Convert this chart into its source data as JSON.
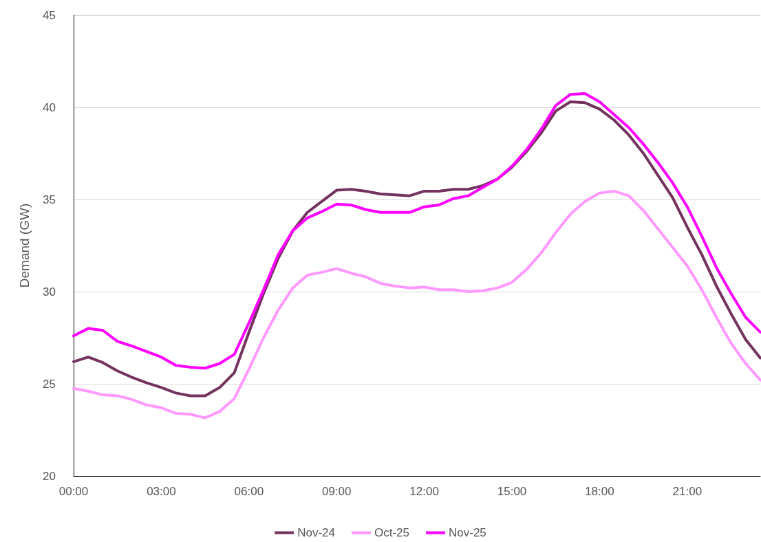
{
  "chart_data": {
    "type": "line",
    "ylabel": "Demand (GW)",
    "xlim": [
      0,
      23.5
    ],
    "ylim": [
      20,
      45
    ],
    "yticks": [
      20,
      25,
      30,
      35,
      40,
      45
    ],
    "xticks": [
      {
        "value": 0,
        "label": "00:00"
      },
      {
        "value": 3,
        "label": "03:00"
      },
      {
        "value": 6,
        "label": "06:00"
      },
      {
        "value": 9,
        "label": "09:00"
      },
      {
        "value": 12,
        "label": "12:00"
      },
      {
        "value": 15,
        "label": "15:00"
      },
      {
        "value": 18,
        "label": "18:00"
      },
      {
        "value": 21,
        "label": "21:00"
      }
    ],
    "x": [
      0,
      0.5,
      1,
      1.5,
      2,
      2.5,
      3,
      3.5,
      4,
      4.5,
      5,
      5.5,
      6,
      6.5,
      7,
      7.5,
      8,
      8.5,
      9,
      9.5,
      10,
      10.5,
      11,
      11.5,
      12,
      12.5,
      13,
      13.5,
      14,
      14.5,
      15,
      15.5,
      16,
      16.5,
      17,
      17.5,
      18,
      18.5,
      19,
      19.5,
      20,
      20.5,
      21,
      21.5,
      22,
      22.5,
      23,
      23.5
    ],
    "grid": "y",
    "legend": "bottom",
    "marker": "none",
    "line_style": "solid",
    "series": [
      {
        "name": "Nov-24",
        "color": "#74325f",
        "values": [
          26.2,
          26.45,
          26.15,
          25.7,
          25.35,
          25.05,
          24.8,
          24.5,
          24.35,
          24.35,
          24.8,
          25.6,
          27.8,
          29.9,
          31.8,
          33.3,
          34.3,
          34.9,
          35.5,
          35.55,
          35.45,
          35.3,
          35.25,
          35.2,
          35.45,
          35.45,
          35.55,
          35.55,
          35.75,
          36.1,
          36.75,
          37.6,
          38.6,
          39.8,
          40.3,
          40.25,
          39.9,
          39.3,
          38.5,
          37.5,
          36.3,
          35.1,
          33.5,
          32.0,
          30.3,
          28.8,
          27.4,
          26.4
        ]
      },
      {
        "name": "Oct-25",
        "color": "#ff99ff",
        "values": [
          24.75,
          24.6,
          24.4,
          24.35,
          24.15,
          23.85,
          23.7,
          23.4,
          23.35,
          23.15,
          23.5,
          24.2,
          25.8,
          27.5,
          29.0,
          30.2,
          30.9,
          31.05,
          31.25,
          31.0,
          30.8,
          30.45,
          30.3,
          30.2,
          30.25,
          30.1,
          30.1,
          30.0,
          30.05,
          30.2,
          30.5,
          31.2,
          32.1,
          33.2,
          34.2,
          34.9,
          35.35,
          35.45,
          35.2,
          34.4,
          33.4,
          32.4,
          31.4,
          30.1,
          28.6,
          27.2,
          26.1,
          25.2
        ]
      },
      {
        "name": "Nov-25",
        "color": "#ff00ff",
        "values": [
          27.6,
          28.0,
          27.9,
          27.3,
          27.05,
          26.75,
          26.45,
          26.0,
          25.9,
          25.85,
          26.1,
          26.6,
          28.3,
          30.1,
          32.0,
          33.3,
          34.0,
          34.35,
          34.75,
          34.7,
          34.45,
          34.3,
          34.3,
          34.3,
          34.6,
          34.7,
          35.05,
          35.2,
          35.65,
          36.1,
          36.8,
          37.7,
          38.8,
          40.1,
          40.7,
          40.75,
          40.3,
          39.6,
          38.9,
          38.0,
          37.0,
          35.9,
          34.6,
          33.0,
          31.3,
          29.9,
          28.6,
          27.8
        ]
      }
    ]
  }
}
